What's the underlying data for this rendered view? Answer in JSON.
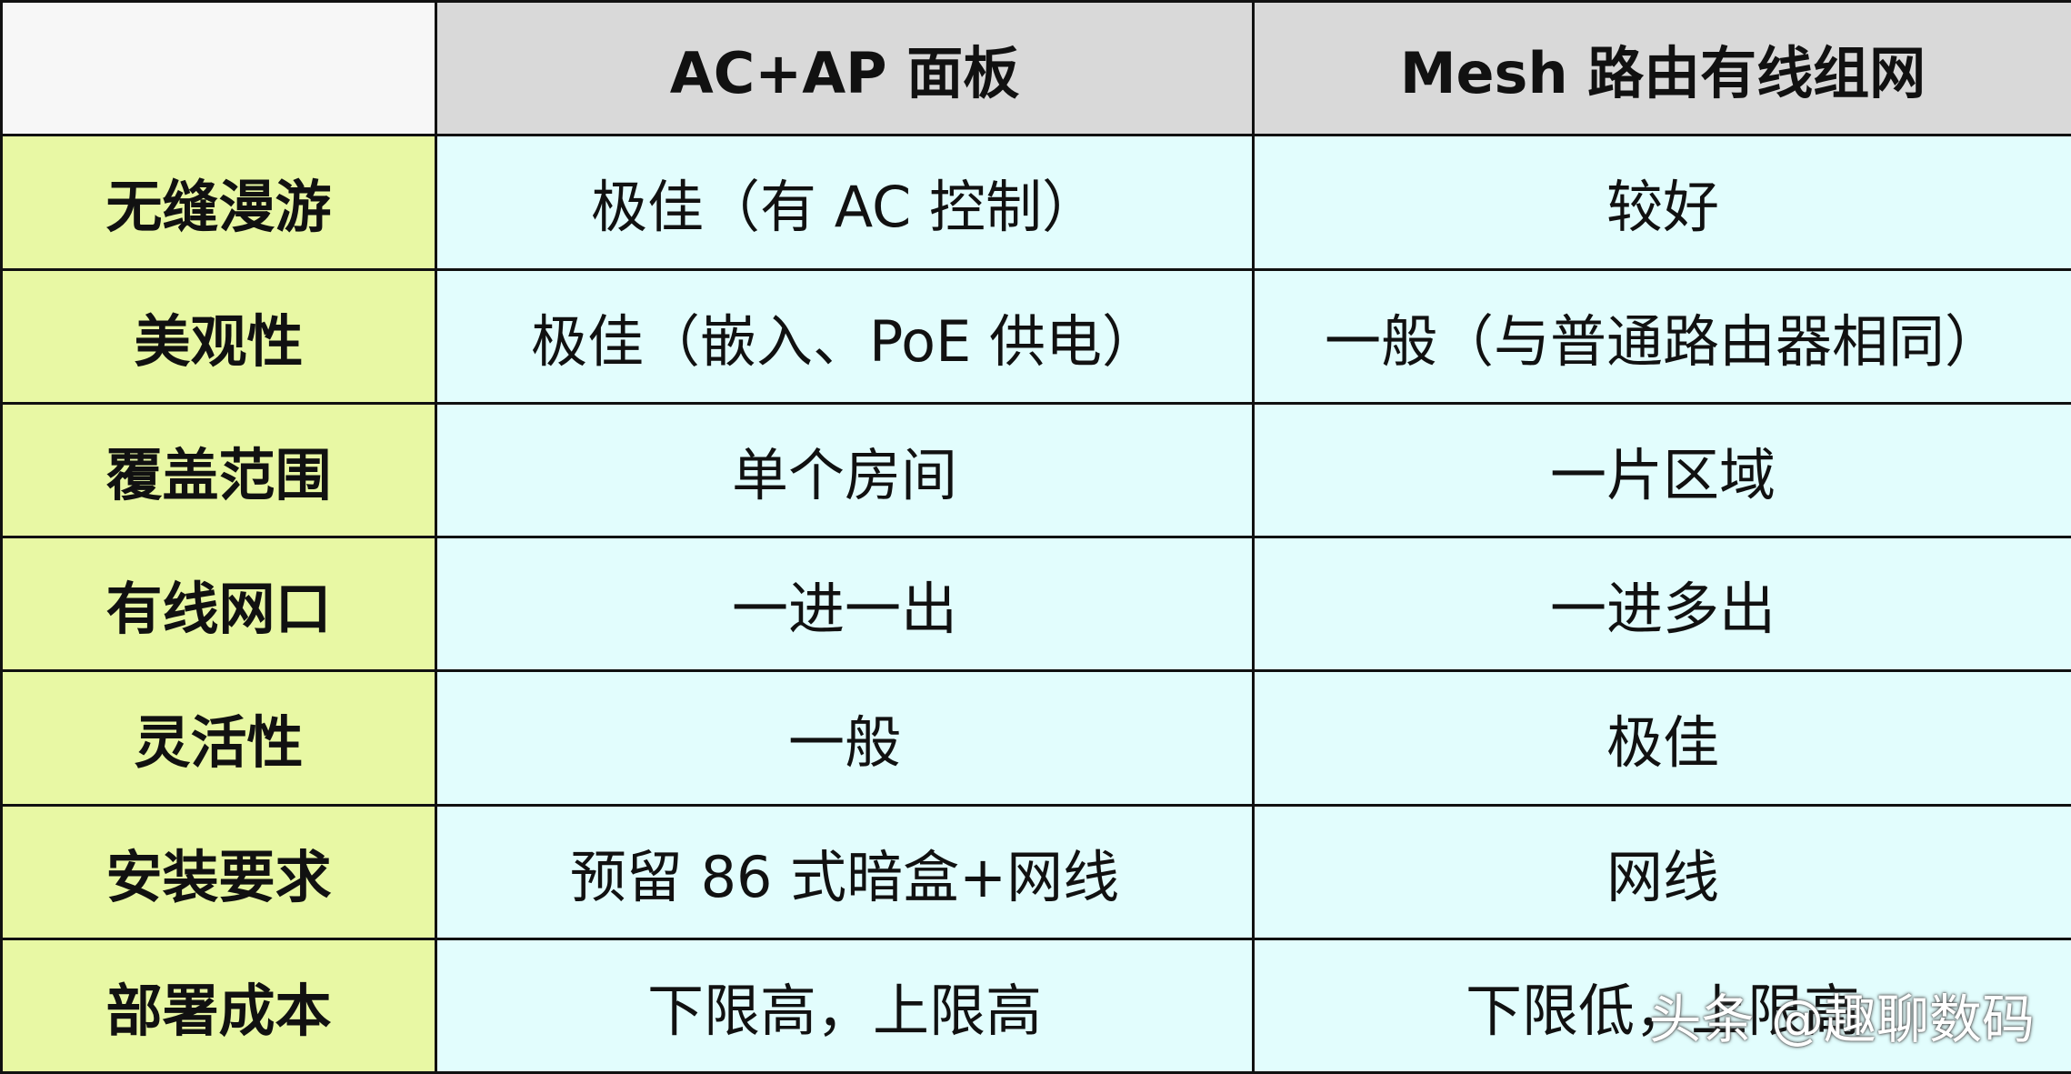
{
  "table": {
    "columns": [
      "AC+AP 面板",
      "Mesh 路由有线组网"
    ],
    "rows": [
      {
        "label": "无缝漫游",
        "values": [
          "极佳（有 AC 控制）",
          "较好"
        ]
      },
      {
        "label": "美观性",
        "values": [
          "极佳（嵌入、PoE 供电）",
          "一般（与普通路由器相同）"
        ]
      },
      {
        "label": "覆盖范围",
        "values": [
          "单个房间",
          "一片区域"
        ]
      },
      {
        "label": "有线网口",
        "values": [
          "一进一出",
          "一进多出"
        ]
      },
      {
        "label": "灵活性",
        "values": [
          "一般",
          "极佳"
        ]
      },
      {
        "label": "安装要求",
        "values": [
          "预留 86 式暗盒+网线",
          "网线"
        ]
      },
      {
        "label": "部署成本",
        "values": [
          "下限高，上限高",
          "下限低，上限高"
        ]
      }
    ]
  },
  "watermark": "头条 @趣聊数码"
}
